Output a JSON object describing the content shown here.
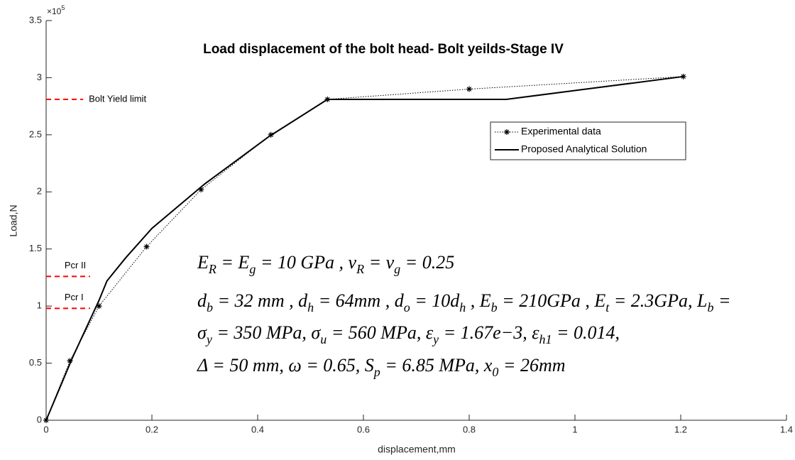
{
  "chart_data": {
    "type": "line",
    "title": "Load displacement of the bolt head- Bolt yeilds-Stage IV",
    "xlabel": "displacement,mm",
    "ylabel": "Load,N",
    "y_exponent": {
      "base": "×10",
      "power": "5"
    },
    "xlim": [
      0,
      1.4
    ],
    "xticks": [
      0,
      0.2,
      0.4,
      0.6,
      0.8,
      1,
      1.2,
      1.4
    ],
    "ylim": [
      0,
      3.5
    ],
    "yticks": [
      0,
      0.5,
      1,
      1.5,
      2,
      2.5,
      3,
      3.5
    ],
    "legend": "upper right",
    "series": [
      {
        "name": "Experimental data",
        "color": "#000000",
        "style": "dotted",
        "marker": "asterisk",
        "x": [
          0,
          0.045,
          0.1,
          0.19,
          0.293,
          0.425,
          0.532,
          0.8,
          1.205
        ],
        "values": [
          0,
          0.52,
          1.0,
          1.52,
          2.02,
          2.5,
          2.81,
          2.9,
          3.01
        ]
      },
      {
        "name": "Proposed Analytical Solution",
        "color": "#000000",
        "style": "solid",
        "x": [
          0,
          0.05,
          0.1,
          0.115,
          0.15,
          0.2,
          0.3,
          0.42,
          0.532,
          0.87,
          1.205
        ],
        "values": [
          0,
          0.55,
          1.05,
          1.22,
          1.42,
          1.68,
          2.07,
          2.48,
          2.81,
          2.81,
          3.01
        ]
      }
    ],
    "reference_lines": [
      {
        "label": "Bolt Yield limit",
        "value": 2.81,
        "x": [
          0,
          0.07
        ],
        "color": "#ff0000"
      },
      {
        "label": "Pcr II",
        "value": 1.26,
        "x": [
          0,
          0.083
        ],
        "color": "#ff0000"
      },
      {
        "label": "Pcr I",
        "value": 0.98,
        "x": [
          0,
          0.083
        ],
        "color": "#ff0000"
      }
    ],
    "equations": [
      [
        "E",
        {
          "sub": "R"
        },
        " = E",
        {
          "sub": "g"
        },
        " = 10 GPa , ν",
        {
          "sub": "R"
        },
        " = ν",
        {
          "sub": "g"
        },
        " = 0.25"
      ],
      [
        "d",
        {
          "sub": "b"
        },
        " = 32 mm , d",
        {
          "sub": "h"
        },
        " = 64mm , d",
        {
          "sub": "o"
        },
        " = 10d",
        {
          "sub": "h"
        },
        " , E",
        {
          "sub": "b"
        },
        " = 210GPa , E",
        {
          "sub": "t"
        },
        " = 2.3GPa, L",
        {
          "sub": "b"
        },
        " ="
      ],
      [
        "σ",
        {
          "sub": "y"
        },
        " = 350 MPa, σ",
        {
          "sub": "u"
        },
        " = 560 MPa, ε",
        {
          "sub": "y"
        },
        " = 1.67e−3, ε",
        {
          "sub": "h1"
        },
        " = 0.014,"
      ],
      [
        "Δ = 50 mm, ω = 0.65, S",
        {
          "sub": "p"
        },
        " = 6.85 MPa, x",
        {
          "sub": "0"
        },
        " = 26mm"
      ]
    ]
  }
}
